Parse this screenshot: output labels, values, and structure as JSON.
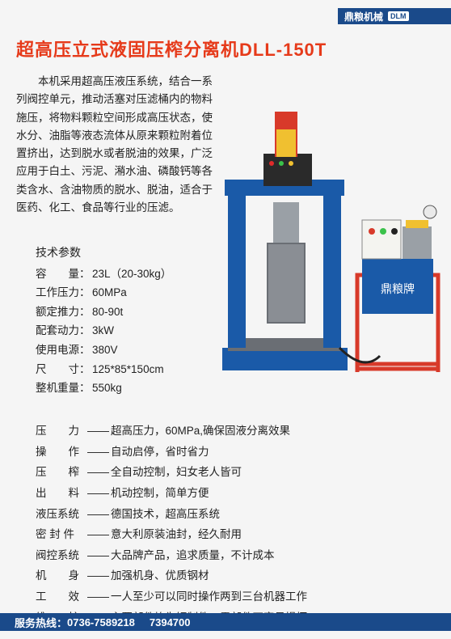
{
  "header": {
    "brand_cn": "鼎粮机械",
    "brand_en": "DLM"
  },
  "title": "超高压立式液固压榨分离机DLL-150T",
  "description": "本机采用超高压液压系统，结合一系列阀控单元，推动活塞对压滤桶内的物料施压，将物料颗粒空间形成高压状态，使水分、油脂等液态流体从原来颗粒附着位置挤出，达到脱水或者脱油的效果，广泛应用于白土、污泥、潲水油、磷酸钙等各类含水、含油物质的脱水、脱油，适合于医药、化工、食品等行业的压滤。",
  "specs": {
    "heading": "技术参数",
    "rows": [
      {
        "label": "容　　量：",
        "value": "23L（20-30kg）"
      },
      {
        "label": "工作压力：",
        "value": "60MPa"
      },
      {
        "label": "额定推力：",
        "value": "80-90t"
      },
      {
        "label": "配套动力：",
        "value": "3kW"
      },
      {
        "label": "使用电源：",
        "value": "380V"
      },
      {
        "label": "尺　　寸：",
        "value": "125*85*150cm"
      },
      {
        "label": "整机重量：",
        "value": "550kg"
      }
    ]
  },
  "features": [
    {
      "label": "压　　力",
      "value": "超高压力，60MPa,确保固液分离效果"
    },
    {
      "label": "操　　作",
      "value": "自动启停，省时省力"
    },
    {
      "label": "压　　榨",
      "value": "全自动控制，妇女老人皆可"
    },
    {
      "label": "出　　料",
      "value": "机动控制，简单方便"
    },
    {
      "label": "液压系统",
      "value": "德国技术，超高压系统"
    },
    {
      "label": "密 封 件",
      "value": "意大利原装油封，经久耐用"
    },
    {
      "label": "阀控系统",
      "value": "大品牌产品，追求质量，不计成本"
    },
    {
      "label": "机　　身",
      "value": "加强机身、优质钢材"
    },
    {
      "label": "工　　效",
      "value": "一人至少可以同时操作两到三台机器工作"
    },
    {
      "label": "维　　护",
      "value": "主要部件均为钢制件，零部件不容易损坏"
    }
  ],
  "feature_separator": "——",
  "footer": {
    "label": "服务热线：",
    "phone1": "0736-7589218",
    "phone2": "7394700"
  },
  "colors": {
    "brand_blue": "#1a4a8a",
    "title_red": "#e63a1a",
    "machine_blue": "#1a5aa8",
    "machine_red": "#d83a2a",
    "machine_yellow": "#f0c030",
    "machine_gray": "#9aa0a6",
    "bg": "#f5f5f5"
  },
  "image": {
    "brand_label": "鼎粮牌"
  }
}
